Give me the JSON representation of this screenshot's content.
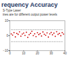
{
  "chart_data": {
    "type": "scatter",
    "title": "requency Accuracy",
    "subtitle": [
      "S-Type Laser",
      "ines are for different output power levels"
    ],
    "x": [
      1,
      2,
      3,
      4,
      5,
      6,
      7,
      8,
      9,
      10,
      11,
      12,
      13,
      14,
      15,
      16,
      17,
      18,
      19,
      20,
      21,
      22,
      23,
      24,
      25,
      26,
      27,
      28,
      29,
      30,
      31,
      32,
      33,
      34,
      35,
      36,
      37,
      38,
      39
    ],
    "series": [
      {
        "color": "#cc0000",
        "marker": "circle",
        "values": [
          1.2,
          0.4,
          2.1,
          -0.8,
          1.5,
          0.9,
          2.6,
          -0.3,
          1.1,
          1.8,
          0.2,
          2.3,
          -1.1,
          0.7,
          1.6,
          2.9,
          0.1,
          1.3,
          -0.6,
          2.0,
          0.8,
          1.4,
          -0.2,
          2.5,
          1.0,
          0.3,
          1.9,
          -0.9,
          1.2,
          2.2,
          0.6,
          1.7,
          -0.4,
          2.7,
          0.9,
          1.5,
          0.0,
          2.1,
          1.1
        ]
      },
      {
        "type": "line",
        "color": "#9a9a9a",
        "line_style": "dashed",
        "values": [
          4,
          4,
          4,
          4,
          4,
          4,
          4,
          4,
          4,
          4,
          4,
          4,
          4,
          4,
          4,
          4,
          4,
          4,
          4,
          4,
          4,
          4,
          4,
          4,
          4,
          4,
          4,
          4,
          4,
          4,
          4,
          4,
          4,
          4,
          4,
          4,
          4,
          4,
          4
        ]
      },
      {
        "type": "line",
        "color": "#9a9a9a",
        "line_style": "dashed",
        "values": [
          -4,
          -4,
          -4,
          -4,
          -4,
          -4,
          -4,
          -4,
          -4,
          -4,
          -4,
          -4,
          -4,
          -4,
          -4,
          -4,
          -4,
          -4,
          -4,
          -4,
          -4,
          -4,
          -4,
          -4,
          -4,
          -4,
          -4,
          -4,
          -4,
          -4,
          -4,
          -4,
          -4,
          -4,
          -4,
          -4,
          -4,
          -4,
          -4
        ]
      }
    ],
    "xlim": [
      0,
      40
    ],
    "xticks": [
      0,
      10,
      20,
      30,
      40
    ],
    "ylim": [
      -10,
      10
    ],
    "yticks": [
      -10,
      0,
      10
    ],
    "grid": false
  }
}
